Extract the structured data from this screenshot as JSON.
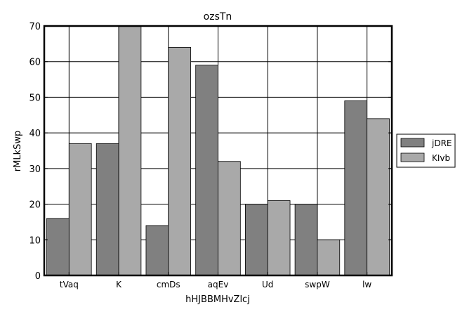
{
  "chart_data": {
    "type": "bar",
    "title": "ozsTn",
    "xlabel": "hHJBBMHvZlcj",
    "ylabel": "rMLkSwp",
    "categories": [
      "tVaq",
      "K",
      "cmDs",
      "aqEv",
      "Ud",
      "swpW",
      "lw"
    ],
    "series": [
      {
        "name": "jDRE",
        "color": "#808080",
        "values": [
          16,
          37,
          14,
          59,
          20,
          20,
          49
        ]
      },
      {
        "name": "KIvb",
        "color": "#a9a9a9",
        "values": [
          37,
          70,
          64,
          32,
          21,
          10,
          44
        ]
      }
    ],
    "ylim": [
      0,
      70
    ],
    "yticks": [
      0,
      10,
      20,
      30,
      40,
      50,
      60,
      70
    ],
    "grid": true,
    "legend_position": "right"
  }
}
